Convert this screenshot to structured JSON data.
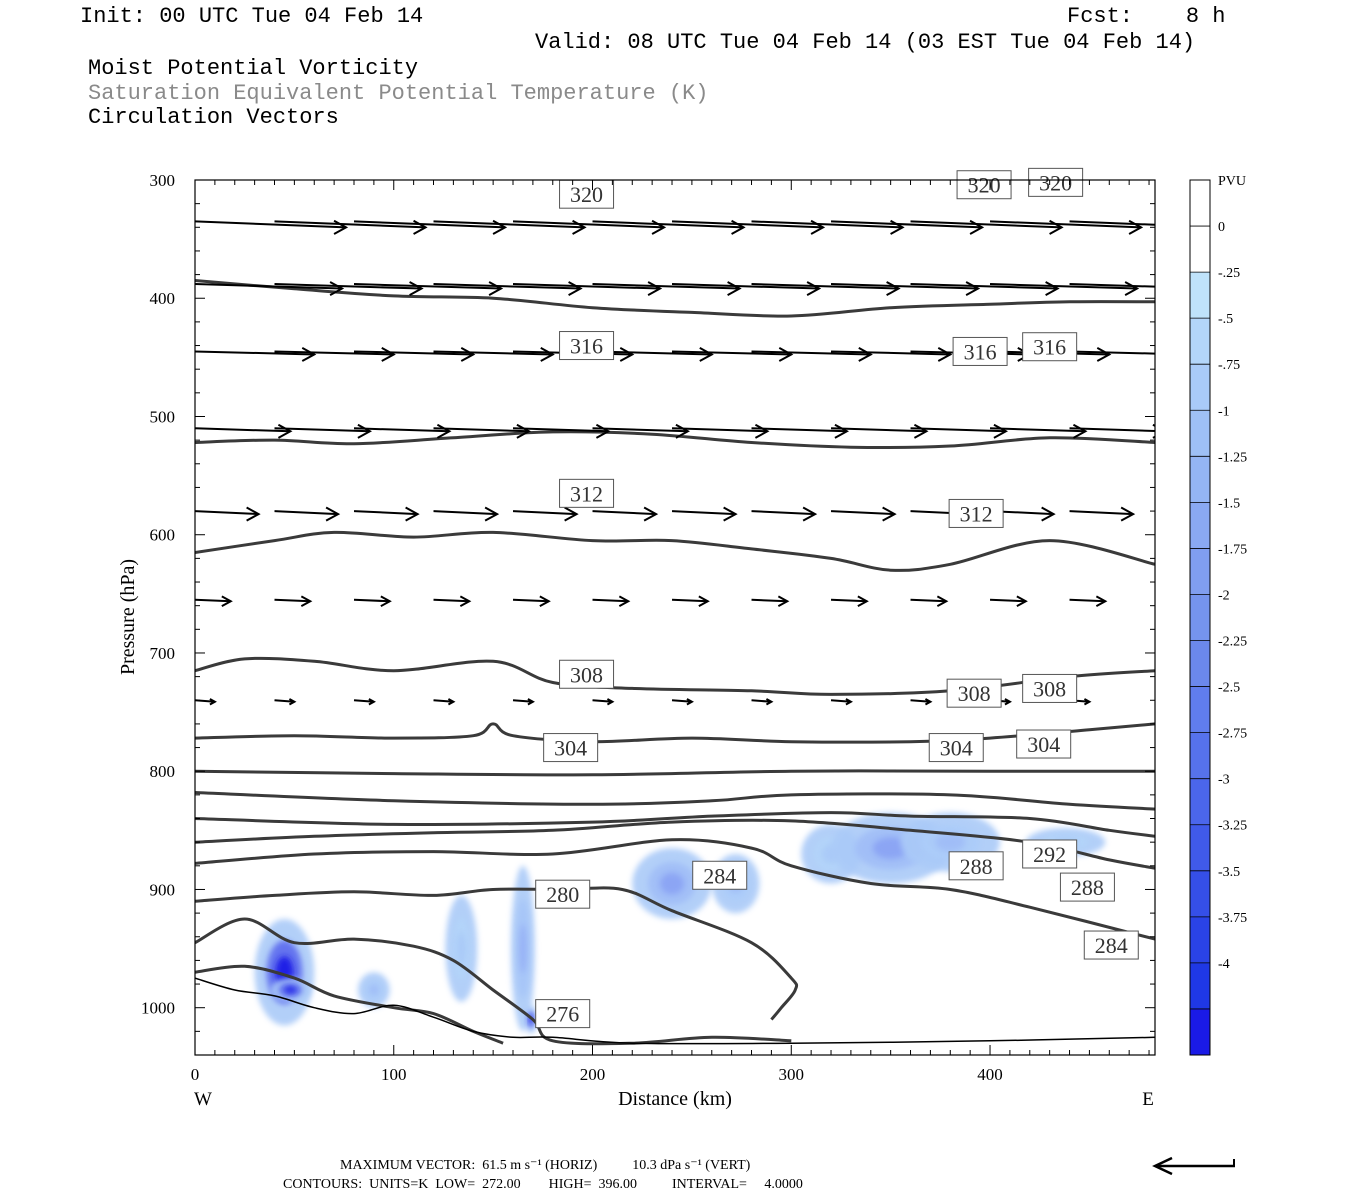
{
  "header": {
    "init": "Init: 00 UTC Tue 04 Feb 14",
    "fcst": "Fcst:    8 h",
    "valid": "Valid: 08 UTC Tue 04 Feb 14 (03 EST Tue 04 Feb 14)",
    "field1": "Moist Potential Vorticity",
    "field2": "Saturation Equivalent Potential Temperature (K)",
    "field3": "Circulation Vectors"
  },
  "footer": {
    "max_vector": "MAXIMUM VECTOR:  61.5 m s⁻¹ (HORIZ)          10.3 dPa s⁻¹ (VERT)",
    "contours": "CONTOURS:  UNITS=K  LOW=  272.00        HIGH=  396.00          INTERVAL=     4.0000"
  },
  "colors": {
    "contour": "#3a3a3a",
    "terrain": "#000000",
    "shade_light": "#bfe3fb",
    "shade_dark": "#1a1ae6"
  },
  "chart_data": {
    "type": "contour",
    "xlabel": "Distance (km)",
    "ylabel": "Pressure (hPa)",
    "xlim": [
      0,
      483
    ],
    "ylim": [
      300,
      1040
    ],
    "y_inverted": true,
    "x_ticks": [
      0,
      100,
      200,
      300,
      400
    ],
    "y_ticks": [
      300,
      400,
      500,
      600,
      700,
      800,
      900,
      1000
    ],
    "x_end_labels": {
      "left": "W",
      "right": "E"
    },
    "colorbar": {
      "units": "PVU",
      "labels": [
        "0",
        "-.25",
        "-.5",
        "-.75",
        "-1",
        "-1.25",
        "-1.5",
        "-1.75",
        "-2",
        "-2.25",
        "-2.5",
        "-2.75",
        "-3",
        "-3.25",
        "-3.5",
        "-3.75",
        "-4"
      ],
      "colors": [
        "#ffffff",
        "#ffffff",
        "#bfe3fb",
        "#b3d6fa",
        "#a9cbf8",
        "#9ec0f6",
        "#94b5f4",
        "#8aa9f2",
        "#809ef0",
        "#7594ee",
        "#6b88ec",
        "#607ded",
        "#5672ec",
        "#4b66eb",
        "#405ae9",
        "#354fe8",
        "#2a43e7",
        "#1f38e6",
        "#1a1ae6"
      ]
    },
    "theta_contours": [
      {
        "level": 320,
        "points": [
          [
            0,
            385
          ],
          [
            50,
            392
          ],
          [
            100,
            398
          ],
          [
            150,
            400
          ],
          [
            200,
            408
          ],
          [
            250,
            412
          ],
          [
            300,
            415
          ],
          [
            350,
            408
          ],
          [
            400,
            405
          ],
          [
            440,
            403
          ],
          [
            483,
            403
          ]
        ],
        "labels": [
          [
            197,
            312
          ],
          [
            397,
            304
          ],
          [
            433,
            302
          ]
        ],
        "label_texts": [
          "320",
          "320",
          "320"
        ]
      },
      {
        "level": 316,
        "points": [
          [
            0,
            522
          ],
          [
            40,
            520
          ],
          [
            80,
            523
          ],
          [
            130,
            518
          ],
          [
            180,
            513
          ],
          [
            230,
            515
          ],
          [
            280,
            522
          ],
          [
            330,
            526
          ],
          [
            380,
            525
          ],
          [
            430,
            518
          ],
          [
            483,
            522
          ]
        ],
        "labels": [
          [
            197,
            440
          ],
          [
            395,
            445
          ],
          [
            430,
            441
          ]
        ],
        "label_texts": [
          "316",
          "316",
          "316"
        ]
      },
      {
        "level": 312,
        "points": [
          [
            0,
            615
          ],
          [
            40,
            605
          ],
          [
            70,
            598
          ],
          [
            110,
            602
          ],
          [
            150,
            598
          ],
          [
            200,
            605
          ],
          [
            240,
            605
          ],
          [
            280,
            612
          ],
          [
            320,
            620
          ],
          [
            350,
            630
          ],
          [
            380,
            625
          ],
          [
            430,
            605
          ],
          [
            483,
            625
          ]
        ],
        "labels": [
          [
            197,
            565
          ],
          [
            393,
            582
          ]
        ],
        "label_texts": [
          "312",
          "312"
        ]
      },
      {
        "level": 308,
        "points": [
          [
            0,
            715
          ],
          [
            25,
            705
          ],
          [
            60,
            707
          ],
          [
            100,
            715
          ],
          [
            150,
            707
          ],
          [
            180,
            725
          ],
          [
            220,
            730
          ],
          [
            280,
            732
          ],
          [
            320,
            735
          ],
          [
            380,
            732
          ],
          [
            440,
            720
          ],
          [
            483,
            715
          ]
        ],
        "labels": [
          [
            197,
            718
          ],
          [
            392,
            734
          ],
          [
            430,
            730
          ]
        ],
        "label_texts": [
          "308",
          "308",
          "308"
        ]
      },
      {
        "level": 304,
        "points": [
          [
            0,
            772
          ],
          [
            50,
            770
          ],
          [
            100,
            772
          ],
          [
            140,
            770
          ],
          [
            150,
            760
          ],
          [
            160,
            770
          ],
          [
            200,
            775
          ],
          [
            250,
            772
          ],
          [
            300,
            775
          ],
          [
            360,
            775
          ],
          [
            400,
            772
          ],
          [
            450,
            765
          ],
          [
            483,
            760
          ]
        ],
        "labels": [
          [
            189,
            780
          ],
          [
            383,
            780
          ],
          [
            427,
            777
          ]
        ],
        "label_texts": [
          "304",
          "304",
          "304"
        ]
      },
      {
        "level": 300,
        "points": [
          [
            0,
            800
          ],
          [
            100,
            802
          ],
          [
            200,
            803
          ],
          [
            300,
            800
          ],
          [
            400,
            800
          ],
          [
            483,
            800
          ]
        ],
        "labels": [],
        "label_texts": []
      },
      {
        "level": 296,
        "points": [
          [
            0,
            818
          ],
          [
            100,
            825
          ],
          [
            200,
            828
          ],
          [
            260,
            825
          ],
          [
            300,
            820
          ],
          [
            380,
            820
          ],
          [
            440,
            828
          ],
          [
            483,
            832
          ]
        ],
        "labels": [],
        "label_texts": []
      },
      {
        "level": 292,
        "points": [
          [
            0,
            840
          ],
          [
            100,
            845
          ],
          [
            200,
            843
          ],
          [
            260,
            838
          ],
          [
            320,
            835
          ],
          [
            360,
            838
          ],
          [
            420,
            840
          ],
          [
            460,
            850
          ],
          [
            483,
            855
          ]
        ],
        "labels": [
          [
            430,
            870
          ]
        ],
        "label_texts": [
          "292"
        ]
      },
      {
        "level": 288,
        "points": [
          [
            0,
            860
          ],
          [
            60,
            855
          ],
          [
            120,
            852
          ],
          [
            180,
            850
          ],
          [
            240,
            843
          ],
          [
            300,
            842
          ],
          [
            360,
            850
          ],
          [
            420,
            860
          ],
          [
            460,
            875
          ],
          [
            483,
            882
          ]
        ],
        "labels": [
          [
            393,
            880
          ],
          [
            449,
            898
          ]
        ],
        "label_texts": [
          "288",
          "288"
        ]
      },
      {
        "level": 284,
        "points": [
          [
            0,
            878
          ],
          [
            60,
            870
          ],
          [
            120,
            868
          ],
          [
            180,
            870
          ],
          [
            240,
            858
          ],
          [
            280,
            865
          ],
          [
            300,
            880
          ],
          [
            340,
            895
          ],
          [
            380,
            900
          ],
          [
            420,
            915
          ],
          [
            483,
            942
          ]
        ],
        "labels": [
          [
            264,
            888
          ],
          [
            461,
            947
          ]
        ],
        "label_texts": [
          "284",
          "284"
        ]
      },
      {
        "level": 280,
        "points": [
          [
            0,
            910
          ],
          [
            40,
            905
          ],
          [
            80,
            902
          ],
          [
            120,
            905
          ],
          [
            150,
            900
          ],
          [
            185,
            900
          ],
          [
            215,
            900
          ],
          [
            240,
            918
          ],
          [
            280,
            945
          ],
          [
            300,
            975
          ],
          [
            302,
            985
          ],
          [
            295,
            1000
          ],
          [
            290,
            1010
          ]
        ],
        "labels": [
          [
            185,
            904
          ]
        ],
        "label_texts": [
          "280"
        ]
      },
      {
        "level": 276,
        "points": [
          [
            0,
            945
          ],
          [
            25,
            925
          ],
          [
            50,
            945
          ],
          [
            80,
            942
          ],
          [
            110,
            948
          ],
          [
            130,
            960
          ],
          [
            150,
            985
          ],
          [
            170,
            1010
          ],
          [
            180,
            1028
          ],
          [
            220,
            1030
          ],
          [
            260,
            1025
          ],
          [
            300,
            1028
          ]
        ],
        "labels": [
          [
            185,
            1005
          ]
        ],
        "label_texts": [
          "276"
        ]
      },
      {
        "level": 272,
        "points": [
          [
            0,
            970
          ],
          [
            25,
            965
          ],
          [
            50,
            975
          ],
          [
            70,
            990
          ],
          [
            100,
            1000
          ],
          [
            120,
            1005
          ],
          [
            140,
            1020
          ],
          [
            155,
            1030
          ]
        ],
        "labels": [],
        "label_texts": []
      }
    ],
    "terrain": [
      [
        0,
        975
      ],
      [
        20,
        985
      ],
      [
        40,
        990
      ],
      [
        60,
        1000
      ],
      [
        80,
        1005
      ],
      [
        100,
        998
      ],
      [
        120,
        1008
      ],
      [
        140,
        1020
      ],
      [
        160,
        1025
      ],
      [
        180,
        1025
      ],
      [
        220,
        1030
      ],
      [
        300,
        1030
      ],
      [
        400,
        1028
      ],
      [
        483,
        1025
      ]
    ],
    "pv_blobs": [
      {
        "x": 45,
        "p": 970,
        "rx": 15,
        "ry": 45,
        "min_pvu": -4
      },
      {
        "x": 48,
        "p": 985,
        "rx": 10,
        "ry": 10,
        "min_pvu": -3.75
      },
      {
        "x": 90,
        "p": 985,
        "rx": 8,
        "ry": 15,
        "min_pvu": -0.75
      },
      {
        "x": 134,
        "p": 950,
        "rx": 8,
        "ry": 45,
        "min_pvu": -0.5
      },
      {
        "x": 165,
        "p": 950,
        "rx": 6,
        "ry": 70,
        "min_pvu": -1
      },
      {
        "x": 169,
        "p": 1010,
        "rx": 3,
        "ry": 12,
        "min_pvu": -3.75
      },
      {
        "x": 240,
        "p": 895,
        "rx": 20,
        "ry": 30,
        "min_pvu": -1.25
      },
      {
        "x": 272,
        "p": 895,
        "rx": 12,
        "ry": 25,
        "min_pvu": -0.75
      },
      {
        "x": 320,
        "p": 870,
        "rx": 15,
        "ry": 25,
        "min_pvu": -0.5
      },
      {
        "x": 350,
        "p": 865,
        "rx": 30,
        "ry": 30,
        "min_pvu": -1.25
      },
      {
        "x": 380,
        "p": 860,
        "rx": 25,
        "ry": 25,
        "min_pvu": -0.75
      },
      {
        "x": 438,
        "p": 860,
        "rx": 20,
        "ry": 12,
        "min_pvu": -0.5
      }
    ],
    "vectors": [
      {
        "p": 335,
        "xs": [
          0,
          40,
          80,
          120,
          160,
          200,
          240,
          280,
          320,
          360,
          400,
          440
        ],
        "dx": 38,
        "dp": 4
      },
      {
        "p": 388,
        "xs": [
          0,
          40,
          80,
          120,
          160,
          200,
          240,
          280,
          320,
          360,
          400,
          440
        ],
        "dx": 37,
        "dp": 3
      },
      {
        "p": 445,
        "xs": [
          0,
          40,
          80,
          120,
          160,
          200,
          240,
          280,
          320,
          360,
          400,
          440
        ],
        "dx": 30,
        "dp": 2
      },
      {
        "p": 510,
        "xs": [
          0,
          40,
          80,
          120,
          160,
          200,
          240,
          280,
          320,
          360,
          400,
          440
        ],
        "dx": 24,
        "dp": 2
      },
      {
        "p": 580,
        "xs": [
          0,
          40,
          80,
          120,
          160,
          200,
          240,
          280,
          320,
          360,
          400,
          440
        ],
        "dx": 16,
        "dp": 2
      },
      {
        "p": 655,
        "xs": [
          0,
          40,
          80,
          120,
          160,
          200,
          240,
          280,
          320,
          360,
          400,
          440
        ],
        "dx": 9,
        "dp": 1
      },
      {
        "p": 740,
        "xs": [
          0,
          40,
          80,
          120,
          160,
          200,
          240,
          280,
          320,
          360,
          400,
          440
        ],
        "dx": 5,
        "dp": 1
      }
    ]
  }
}
